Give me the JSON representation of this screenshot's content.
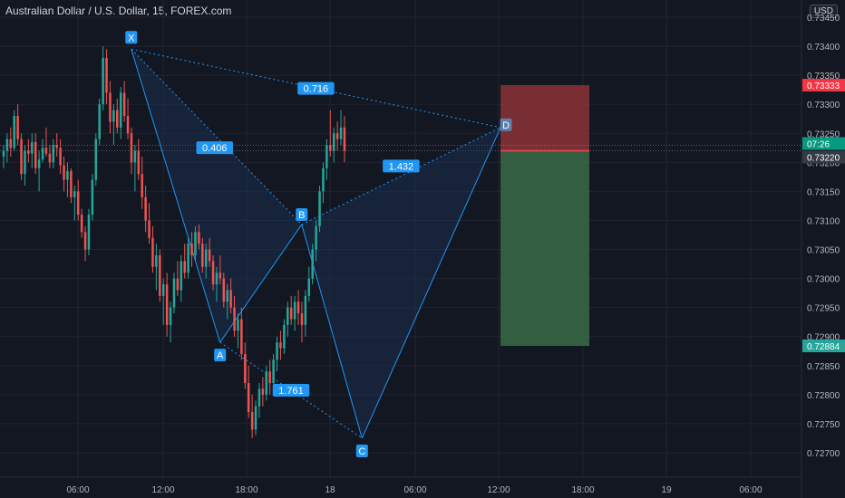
{
  "header": {
    "title": "Australian Dollar / U.S. Dollar, 15, FOREX.com",
    "currency": "USD"
  },
  "colors": {
    "background": "#131722",
    "grid": "#1f2430",
    "up": "#26a69a",
    "down": "#ef5350",
    "pattern_line": "#2196f3",
    "pattern_fill": "#1c3256",
    "label_bg": "#2196f3",
    "stop_zone": "#8b3236",
    "target_zone": "#3b6b45",
    "current_price_bg": "#363a45",
    "stop_price_bg": "#f23645",
    "target_price_bg": "#26a69a",
    "timer_bg": "#089981"
  },
  "chart_data": {
    "type": "candlestick",
    "title": "Australian Dollar / U.S. Dollar, 15, FOREX.com",
    "y_ticks": [
      "0.73450",
      "0.73400",
      "0.73350",
      "0.73300",
      "0.73250",
      "0.73200",
      "0.73150",
      "0.73100",
      "0.73050",
      "0.73000",
      "0.72950",
      "0.72900",
      "0.72850",
      "0.72800",
      "0.72750",
      "0.72700"
    ],
    "x_ticks": [
      "06:00",
      "12:00",
      "18:00",
      "18",
      "06:00",
      "12:00",
      "18:00",
      "19",
      "06:00"
    ],
    "ylim": [
      0.7265,
      0.7348
    ],
    "grid": true,
    "price_labels": {
      "stop": "0.73333",
      "timer": "07:26",
      "current": "0.73220",
      "target": "0.72884"
    },
    "harmonic_pattern": {
      "points": [
        {
          "label": "X",
          "time": "17 09:45",
          "price": 0.73395
        },
        {
          "label": "A",
          "time": "17 16:00",
          "price": 0.7289
        },
        {
          "label": "B",
          "time": "17 21:45",
          "price": 0.73093
        },
        {
          "label": "C",
          "time": "18 02:00",
          "price": 0.72725
        },
        {
          "label": "D",
          "time": "18 11:45",
          "price": 0.7326
        }
      ],
      "ratios": [
        {
          "label": "0.716",
          "between": [
            "X",
            "D"
          ]
        },
        {
          "label": "0.406",
          "between": [
            "X",
            "B"
          ]
        },
        {
          "label": "1.432",
          "between": [
            "B",
            "D"
          ]
        },
        {
          "label": "1.761",
          "between": [
            "A",
            "C"
          ]
        }
      ]
    },
    "position": {
      "type": "short",
      "entry": 0.7322,
      "stop": 0.73333,
      "target": 0.72884,
      "from_time": "18 11:45",
      "to_time": "18 18:00"
    },
    "candles": [
      [
        0.7321,
        0.7323,
        0.7319,
        0.7322
      ],
      [
        0.7322,
        0.7325,
        0.732,
        0.7324
      ],
      [
        0.7324,
        0.7326,
        0.7321,
        0.73225
      ],
      [
        0.73225,
        0.7329,
        0.7322,
        0.7328
      ],
      [
        0.7328,
        0.733,
        0.7323,
        0.7324
      ],
      [
        0.7324,
        0.7325,
        0.7317,
        0.7318
      ],
      [
        0.7318,
        0.7323,
        0.7316,
        0.7322
      ],
      [
        0.7322,
        0.7324,
        0.732,
        0.73215
      ],
      [
        0.73215,
        0.7325,
        0.7319,
        0.73235
      ],
      [
        0.73235,
        0.7325,
        0.7318,
        0.7319
      ],
      [
        0.7319,
        0.7322,
        0.7315,
        0.73205
      ],
      [
        0.73205,
        0.7324,
        0.732,
        0.73225
      ],
      [
        0.73225,
        0.7326,
        0.7321,
        0.73215
      ],
      [
        0.73215,
        0.7323,
        0.7319,
        0.732
      ],
      [
        0.732,
        0.7324,
        0.7319,
        0.7323
      ],
      [
        0.7323,
        0.7325,
        0.7321,
        0.73225
      ],
      [
        0.73225,
        0.7324,
        0.7318,
        0.73195
      ],
      [
        0.73195,
        0.7321,
        0.7315,
        0.7317
      ],
      [
        0.7317,
        0.732,
        0.7314,
        0.73185
      ],
      [
        0.73185,
        0.7319,
        0.7313,
        0.7314
      ],
      [
        0.7314,
        0.7316,
        0.731,
        0.7315
      ],
      [
        0.7315,
        0.7317,
        0.731,
        0.7311
      ],
      [
        0.7311,
        0.7312,
        0.7307,
        0.7308
      ],
      [
        0.7308,
        0.7309,
        0.7303,
        0.7305
      ],
      [
        0.7305,
        0.7312,
        0.7304,
        0.7311
      ],
      [
        0.7311,
        0.7318,
        0.731,
        0.7317
      ],
      [
        0.7317,
        0.7325,
        0.7316,
        0.7324
      ],
      [
        0.7324,
        0.7331,
        0.7323,
        0.733
      ],
      [
        0.733,
        0.734,
        0.7329,
        0.7338
      ],
      [
        0.7338,
        0.73395,
        0.733,
        0.7332
      ],
      [
        0.7332,
        0.7334,
        0.7325,
        0.7327
      ],
      [
        0.7327,
        0.733,
        0.7323,
        0.7329
      ],
      [
        0.7329,
        0.7331,
        0.7325,
        0.7326
      ],
      [
        0.7326,
        0.7333,
        0.7324,
        0.7332
      ],
      [
        0.7332,
        0.7334,
        0.7327,
        0.7328
      ],
      [
        0.7328,
        0.7331,
        0.7324,
        0.7325
      ],
      [
        0.7325,
        0.7326,
        0.7318,
        0.732
      ],
      [
        0.732,
        0.7323,
        0.7315,
        0.7322
      ],
      [
        0.7322,
        0.7324,
        0.7317,
        0.7318
      ],
      [
        0.7318,
        0.7321,
        0.7312,
        0.7314
      ],
      [
        0.7314,
        0.7316,
        0.7308,
        0.731
      ],
      [
        0.731,
        0.7313,
        0.7306,
        0.7307
      ],
      [
        0.7307,
        0.7309,
        0.7301,
        0.7302
      ],
      [
        0.7302,
        0.7306,
        0.7298,
        0.7304
      ],
      [
        0.7304,
        0.7305,
        0.7296,
        0.7297
      ],
      [
        0.7297,
        0.73,
        0.7292,
        0.7299
      ],
      [
        0.7299,
        0.7301,
        0.729,
        0.7292
      ],
      [
        0.7292,
        0.7296,
        0.7289,
        0.7295
      ],
      [
        0.7295,
        0.7301,
        0.7294,
        0.73
      ],
      [
        0.73,
        0.7303,
        0.7297,
        0.7298
      ],
      [
        0.7298,
        0.7304,
        0.7296,
        0.7303
      ],
      [
        0.7303,
        0.7306,
        0.73,
        0.7301
      ],
      [
        0.7301,
        0.7307,
        0.73,
        0.7306
      ],
      [
        0.7306,
        0.7308,
        0.7302,
        0.7304
      ],
      [
        0.7304,
        0.7309,
        0.7303,
        0.7308
      ],
      [
        0.7308,
        0.73093,
        0.7305,
        0.7306
      ],
      [
        0.7306,
        0.7307,
        0.7301,
        0.7302
      ],
      [
        0.7302,
        0.7306,
        0.73,
        0.7305
      ],
      [
        0.7305,
        0.7307,
        0.7302,
        0.7303
      ],
      [
        0.7303,
        0.7304,
        0.7298,
        0.7299
      ],
      [
        0.7299,
        0.7302,
        0.7296,
        0.7301
      ],
      [
        0.7301,
        0.7304,
        0.7299,
        0.73
      ],
      [
        0.73,
        0.7301,
        0.7295,
        0.7296
      ],
      [
        0.7296,
        0.7299,
        0.7293,
        0.7298
      ],
      [
        0.7298,
        0.73,
        0.7294,
        0.7295
      ],
      [
        0.7295,
        0.7297,
        0.729,
        0.7291
      ],
      [
        0.7291,
        0.7294,
        0.7288,
        0.7293
      ],
      [
        0.7293,
        0.7295,
        0.7286,
        0.7287
      ],
      [
        0.7287,
        0.7289,
        0.7281,
        0.7282
      ],
      [
        0.7282,
        0.7285,
        0.7276,
        0.7277
      ],
      [
        0.7277,
        0.728,
        0.72725,
        0.7274
      ],
      [
        0.7274,
        0.7279,
        0.7273,
        0.7278
      ],
      [
        0.7278,
        0.7282,
        0.7276,
        0.7281
      ],
      [
        0.7281,
        0.7283,
        0.7278,
        0.728
      ],
      [
        0.728,
        0.7285,
        0.7279,
        0.7284
      ],
      [
        0.7284,
        0.7286,
        0.728,
        0.7282
      ],
      [
        0.7282,
        0.7287,
        0.7281,
        0.7286
      ],
      [
        0.7286,
        0.729,
        0.7284,
        0.7289
      ],
      [
        0.7289,
        0.7291,
        0.7286,
        0.7288
      ],
      [
        0.7288,
        0.7293,
        0.7287,
        0.7292
      ],
      [
        0.7292,
        0.7296,
        0.729,
        0.7295
      ],
      [
        0.7295,
        0.7297,
        0.7292,
        0.7293
      ],
      [
        0.7293,
        0.7297,
        0.7291,
        0.7296
      ],
      [
        0.7296,
        0.7298,
        0.7292,
        0.7294
      ],
      [
        0.7294,
        0.7296,
        0.7289,
        0.7292
      ],
      [
        0.7292,
        0.7298,
        0.729,
        0.7297
      ],
      [
        0.7297,
        0.7302,
        0.7296,
        0.73
      ],
      [
        0.73,
        0.7306,
        0.7299,
        0.7305
      ],
      [
        0.7305,
        0.731,
        0.7303,
        0.7309
      ],
      [
        0.7309,
        0.7316,
        0.7308,
        0.7315
      ],
      [
        0.7315,
        0.732,
        0.7313,
        0.7319
      ],
      [
        0.7319,
        0.7324,
        0.7317,
        0.7323
      ],
      [
        0.7323,
        0.7329,
        0.7321,
        0.7322
      ],
      [
        0.7322,
        0.7326,
        0.732,
        0.7325
      ],
      [
        0.7325,
        0.7327,
        0.7322,
        0.7324
      ],
      [
        0.7324,
        0.7329,
        0.7323,
        0.7326
      ],
      [
        0.7326,
        0.7328,
        0.732,
        0.7322
      ]
    ]
  }
}
